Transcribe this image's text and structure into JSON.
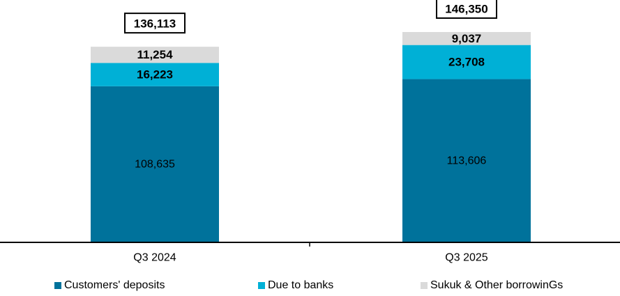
{
  "chart_data": {
    "type": "bar",
    "stacked": true,
    "categories": [
      "Q3 2024",
      "Q3 2025"
    ],
    "series": [
      {
        "name": "Customers' deposits",
        "values": [
          108635,
          113606
        ],
        "labels": [
          "108,635",
          "113,606"
        ],
        "color": "#00729B"
      },
      {
        "name": "Due to banks",
        "values": [
          16223,
          23708
        ],
        "labels": [
          "16,223",
          "23,708"
        ],
        "color": "#00B0D6"
      },
      {
        "name": "Sukuk & Other borrowinGs",
        "values": [
          11254,
          9037
        ],
        "labels": [
          "11,254",
          "9,037"
        ],
        "color": "#DADADA"
      }
    ],
    "totals": [
      136113,
      146350
    ],
    "total_labels": [
      "136,113",
      "146,350"
    ],
    "title": "",
    "xlabel": "",
    "ylabel": "",
    "ylim": [
      0,
      146350
    ],
    "grid": false,
    "legend_position": "bottom"
  }
}
